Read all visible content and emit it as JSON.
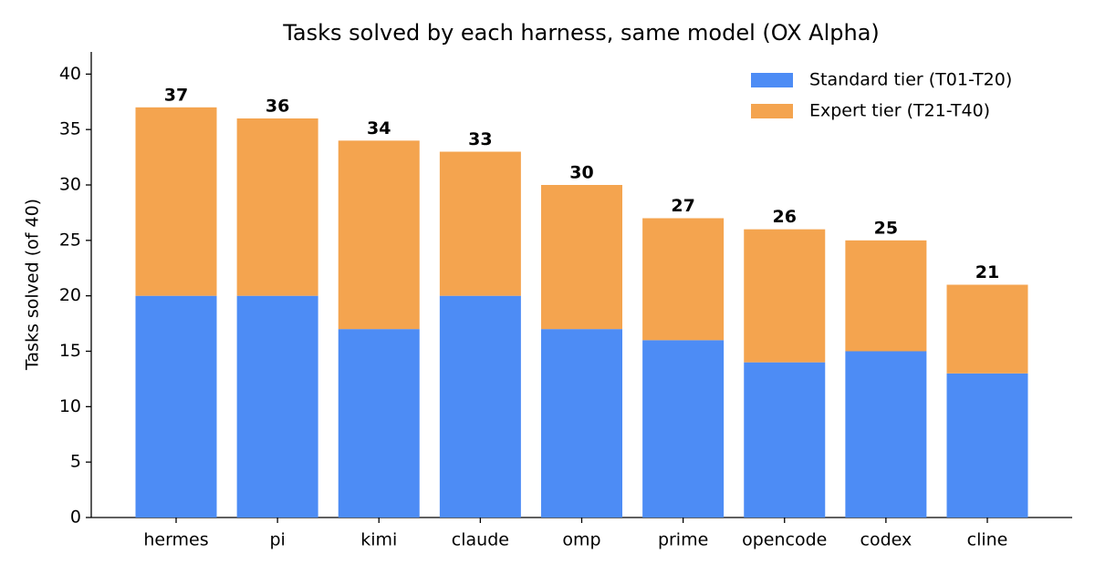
{
  "chart_data": {
    "type": "stacked_bar",
    "title": "Tasks solved by each harness, same model (OX Alpha)",
    "y_label": "Tasks solved (of 40)",
    "categories": [
      "hermes",
      "pi",
      "kimi",
      "claude",
      "omp",
      "prime",
      "opencode",
      "codex",
      "cline"
    ],
    "series": [
      {
        "name": "Standard tier (T01-T20)",
        "color": "#4d8cf5",
        "values": [
          20,
          20,
          17,
          20,
          17,
          16,
          14,
          15,
          13
        ]
      },
      {
        "name": "Expert tier (T21-T40)",
        "color": "#f4a44f",
        "values": [
          17,
          16,
          17,
          13,
          13,
          11,
          12,
          10,
          8
        ]
      }
    ],
    "totals": [
      37,
      36,
      34,
      33,
      30,
      27,
      26,
      25,
      21
    ],
    "ylim": [
      0,
      42
    ],
    "yticks": [
      0,
      5,
      10,
      15,
      20,
      25,
      30,
      35,
      40
    ],
    "grid": false,
    "legend": "upper right"
  }
}
